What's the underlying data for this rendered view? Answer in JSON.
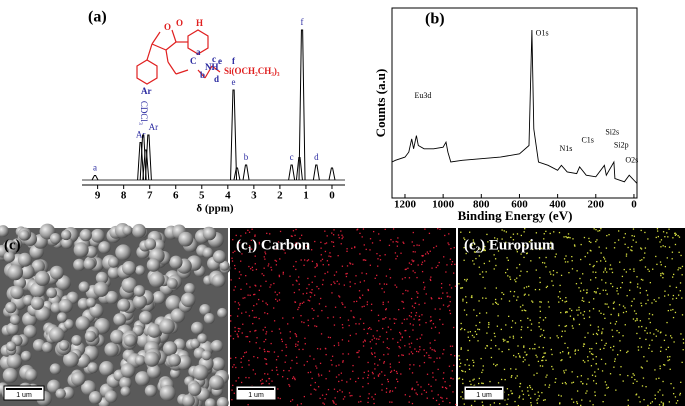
{
  "chart_data": [
    {
      "type": "spectrum",
      "panel_label": "(a)",
      "xlabel": "δ (ppm)",
      "x": [
        9.1,
        7.35,
        7.25,
        7.15,
        7.05,
        3.78,
        3.65,
        3.3,
        1.55,
        1.25,
        1.15,
        0.6,
        0
      ],
      "values": [
        3,
        25,
        30,
        20,
        30,
        60,
        8,
        10,
        10,
        15,
        100,
        10,
        8
      ],
      "labels": [
        "a",
        "Ar",
        "CDCl₃",
        null,
        "Ar",
        "e",
        null,
        "b",
        "c",
        null,
        "f",
        "d",
        null
      ],
      "xlim": [
        9.6,
        -0.5
      ],
      "xticks": [
        9,
        8,
        7,
        6,
        5,
        4,
        3,
        2,
        1,
        0
      ],
      "color": "#000000",
      "label_color": "#2a2aa0",
      "structure_labels": [
        "H",
        "O",
        "O",
        "C",
        "NH",
        "a",
        "b",
        "c",
        "d",
        "e",
        "f",
        "Si(OCH₂CH₃)₃",
        "Ar"
      ]
    },
    {
      "type": "line",
      "panel_label": "(b)",
      "xlabel": "Binding Energy (eV)",
      "ylabel": "Counts (a.u)",
      "x": [
        1268,
        1250,
        1200,
        1180,
        1165,
        1155,
        1140,
        1130,
        1100,
        1050,
        1000,
        985,
        975,
        960,
        900,
        800,
        700,
        600,
        550,
        535,
        525,
        500,
        450,
        400,
        380,
        350,
        300,
        285,
        250,
        200,
        155,
        145,
        105,
        100,
        50,
        25,
        -16
      ],
      "values": [
        20,
        21,
        23,
        26,
        34,
        28,
        36,
        30,
        28,
        28,
        29,
        32,
        26,
        20,
        21,
        22,
        23,
        25,
        30,
        100,
        40,
        20,
        18,
        15,
        18,
        14,
        13,
        17,
        12,
        11,
        18,
        12,
        20,
        10,
        8,
        12,
        7
      ],
      "xlim": [
        1268,
        -16
      ],
      "xticks": [
        1200,
        1000,
        800,
        600,
        400,
        200,
        0
      ],
      "color": "#000000",
      "annotations": [
        {
          "text": "Eu3d",
          "x": 1150,
          "y": 55
        },
        {
          "text": "O1s",
          "x": 515,
          "y": 93
        },
        {
          "text": "N1s",
          "x": 390,
          "y": 23
        },
        {
          "text": "C1s",
          "x": 275,
          "y": 28
        },
        {
          "text": "Si2s",
          "x": 150,
          "y": 33
        },
        {
          "text": "Si2p",
          "x": 105,
          "y": 25
        },
        {
          "text": "O2s",
          "x": 45,
          "y": 16
        }
      ]
    }
  ],
  "images": [
    {
      "label": "(c)",
      "scale_bar": "1 um"
    },
    {
      "label": "(c₁) Carbon",
      "scale_bar": "1 um",
      "dot_color": "#e0203a"
    },
    {
      "label": "(c₂) Europium",
      "scale_bar": "1 um",
      "dot_color": "#d8e040"
    }
  ]
}
